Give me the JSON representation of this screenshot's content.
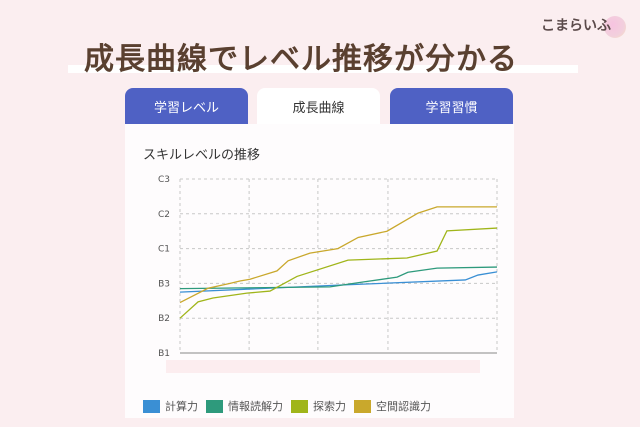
{
  "brand": "こまらいふ",
  "headline": "成長曲線でレベル推移が分かる",
  "tabs": [
    {
      "label": "学習レベル",
      "active": false
    },
    {
      "label": "成長曲線",
      "active": true
    },
    {
      "label": "学習習慣",
      "active": false
    }
  ],
  "colors": {
    "tab": "#4f61c4",
    "title": "#5a4030",
    "background": "#fbeef0"
  },
  "chart_data": {
    "type": "line",
    "title": "スキルレベルの推移",
    "y_ticks": [
      "B1",
      "B2",
      "B3",
      "C1",
      "C2",
      "C3"
    ],
    "ylim": [
      0,
      5
    ],
    "grid": true,
    "legend": "bottom",
    "series": [
      {
        "name": "計算力",
        "color": "#3a8fd4",
        "x": [
          0,
          50,
          90,
          94,
          100
        ],
        "y": [
          1.75,
          1.95,
          2.1,
          2.24,
          2.33
        ]
      },
      {
        "name": "情報読解力",
        "color": "#2e9a7c",
        "x": [
          0,
          47.3,
          57.7,
          68.5,
          71.9,
          81.1,
          100
        ],
        "y": [
          1.85,
          1.9,
          2.04,
          2.18,
          2.32,
          2.44,
          2.47
        ]
      },
      {
        "name": "探索力",
        "color": "#a0b51a",
        "x": [
          0,
          5.7,
          10.4,
          21.1,
          28.4,
          36.9,
          53,
          71.6,
          81.1,
          84.2,
          100
        ],
        "y": [
          1.0,
          1.47,
          1.58,
          1.72,
          1.78,
          2.2,
          2.67,
          2.73,
          2.93,
          3.51,
          3.59
        ]
      },
      {
        "name": "空間認識力",
        "color": "#c9a82c",
        "x": [
          0,
          8.8,
          15.8,
          18.9,
          22.1,
          30.6,
          34.1,
          41,
          49.8,
          56.2,
          65.3,
          75.1,
          81.1,
          100
        ],
        "y": [
          1.45,
          1.86,
          2.0,
          2.07,
          2.12,
          2.36,
          2.65,
          2.87,
          3.0,
          3.32,
          3.5,
          4.02,
          4.2,
          4.2
        ]
      }
    ]
  }
}
